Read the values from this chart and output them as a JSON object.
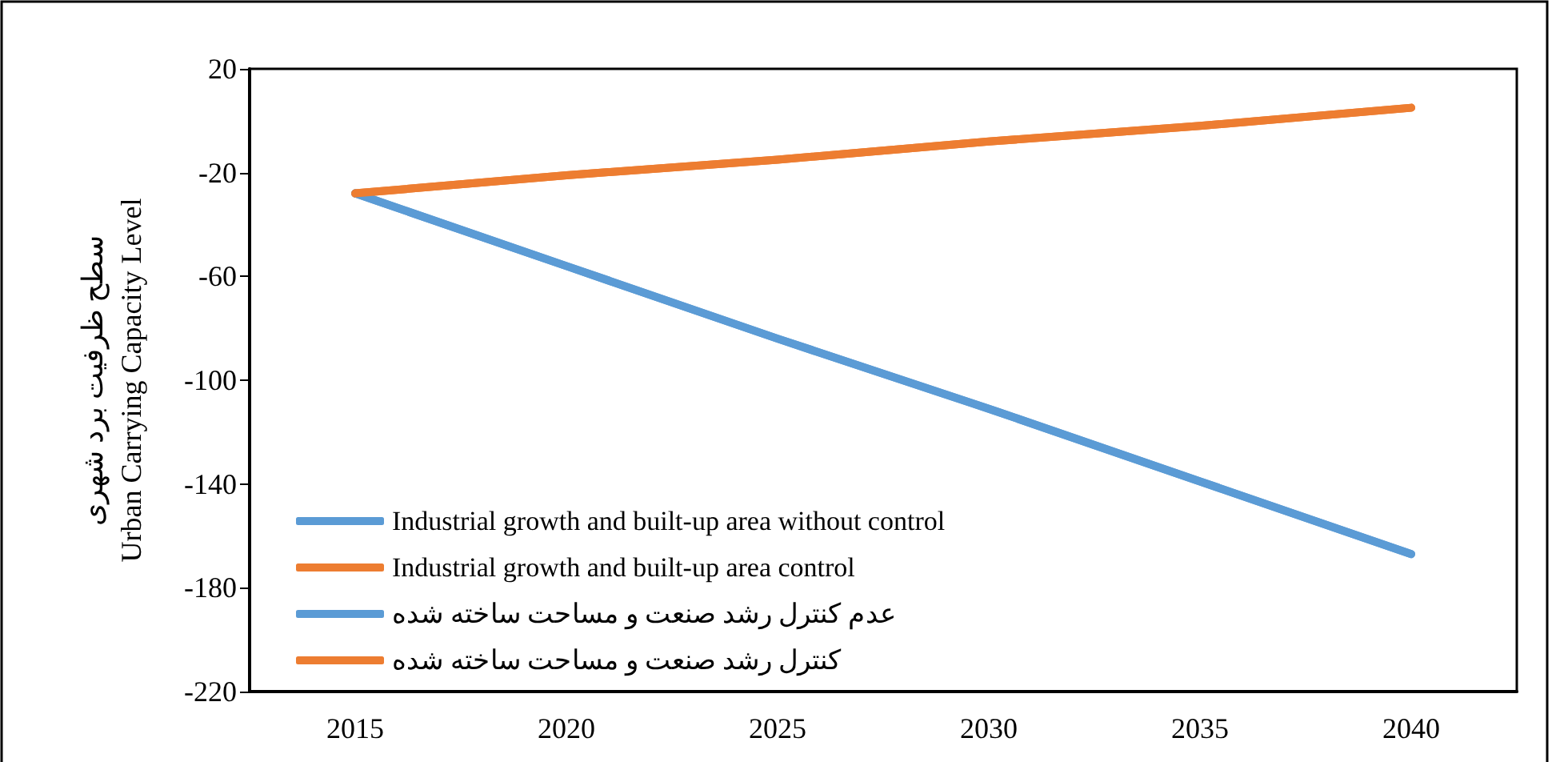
{
  "chart_data": {
    "type": "line",
    "ylabel": "سطح ظرفیت برد شهری\nUrban Carrying Capacity Level",
    "categories": [
      "2015",
      "2020",
      "2025",
      "2030",
      "2035",
      "2040"
    ],
    "series": [
      {
        "name": "Industrial growth and built-up area without control",
        "color": "#5b9bd5",
        "values": [
          -28,
          -56,
          -84,
          -111,
          -139,
          -167
        ]
      },
      {
        "name": "Industrial growth and built-up area control",
        "color": "#ed7d31",
        "values": [
          -28,
          -21,
          -15,
          -8,
          -2,
          5
        ]
      },
      {
        "name": "عدم کنترل رشد صنعت و مساحت ساخته شده",
        "color": "#5b9bd5",
        "values": [
          -28,
          -56,
          -84,
          -111,
          -139,
          -167
        ]
      },
      {
        "name": "کنترل رشد صنعت و مساحت ساخته شده",
        "color": "#ed7d31",
        "values": [
          -28,
          -21,
          -15,
          -8,
          -2,
          5
        ]
      }
    ],
    "ylim": [
      -220,
      20
    ],
    "yticks": [
      -220,
      -180,
      -140,
      -100,
      -60,
      -20,
      20
    ],
    "grid": false,
    "legend": "bottom left",
    "marker": "none",
    "line_style": "solid"
  }
}
